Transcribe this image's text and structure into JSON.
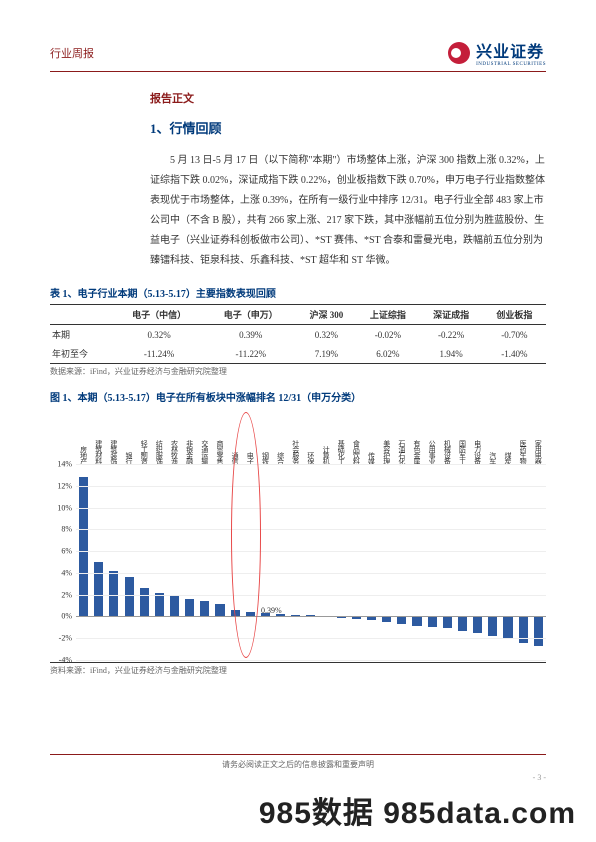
{
  "header": {
    "left": "行业周报",
    "logo_cn": "兴业证券",
    "logo_en": "INDUSTRIAL SECURITIES"
  },
  "section_label": "报告正文",
  "h1": "1、行情回顾",
  "body": "5 月 13 日-5 月 17 日（以下简称\"本期\"）市场整体上涨，沪深 300 指数上涨 0.32%，上证综指下跌 0.02%，深证成指下跌 0.22%，创业板指数下跌 0.70%，申万电子行业指数整体表现优于市场整体，上涨 0.39%，在所有一级行业中排序 12/31。电子行业全部 483 家上市公司中（不含 B 股），共有 266 家上涨、217 家下跌，其中涨幅前五位分别为胜蓝股份、生益电子（兴业证券科创板做市公司）、*ST 赛伟、*ST 合泰和雷曼光电，跌幅前五位分别为臻镭科技、钜泉科技、乐鑫科技、*ST 超华和 ST 华微。",
  "table": {
    "title": "表 1、电子行业本期（5.13-5.17）主要指数表现回顾",
    "columns": [
      "",
      "电子（中信）",
      "电子（申万）",
      "沪深 300",
      "上证综指",
      "深证成指",
      "创业板指"
    ],
    "rows": [
      {
        "label": "本期",
        "cells": [
          "0.32%",
          "0.39%",
          "0.32%",
          "-0.02%",
          "-0.22%",
          "-0.70%"
        ]
      },
      {
        "label": "年初至今",
        "cells": [
          "-11.24%",
          "-11.22%",
          "7.19%",
          "6.02%",
          "1.94%",
          "-1.40%"
        ]
      }
    ],
    "source": "数据来源：iFind，兴业证券经济与金融研究院整理"
  },
  "chart": {
    "title": "图 1、本期（5.13-5.17）电子在所有板块中涨幅排名 12/31（申万分类）",
    "type": "bar",
    "ylim": [
      -4,
      14
    ],
    "ytick_step": 2,
    "yticks": [
      "-4%",
      "-2%",
      "0%",
      "2%",
      "4%",
      "6%",
      "8%",
      "10%",
      "12%",
      "14%"
    ],
    "categories": [
      "房地产",
      "建筑材料",
      "建筑装饰",
      "银行",
      "轻工制造",
      "纺织服饰",
      "农林牧渔",
      "非银金融",
      "交通运输",
      "商贸零售",
      "通信",
      "电子",
      "钢铁",
      "综合",
      "社会服务",
      "环保",
      "计算机",
      "基础化工",
      "食品饮料",
      "传媒",
      "美容护理",
      "石油石化",
      "有色金属",
      "公用事业",
      "机械设备",
      "国防军工",
      "电力设备",
      "汽车",
      "煤炭",
      "医药生物",
      "家用电器"
    ],
    "values": [
      12.8,
      5.0,
      4.2,
      3.6,
      2.6,
      2.2,
      1.9,
      1.6,
      1.4,
      1.1,
      0.6,
      0.39,
      0.35,
      0.2,
      0.15,
      0.1,
      0.05,
      -0.1,
      -0.2,
      -0.3,
      -0.5,
      -0.7,
      -0.9,
      -1.0,
      -1.1,
      -1.3,
      -1.5,
      -1.8,
      -2.0,
      -2.4,
      -2.7
    ],
    "bar_color": "#2d5aa0",
    "annotation": "0.39%",
    "source": "资料来源：iFind，兴业证券经济与金融研究院整理"
  },
  "footer": {
    "text": "请务必阅读正文之后的信息披露和重要声明",
    "page": "- 3  -"
  },
  "watermark": "985数据 985data.com"
}
